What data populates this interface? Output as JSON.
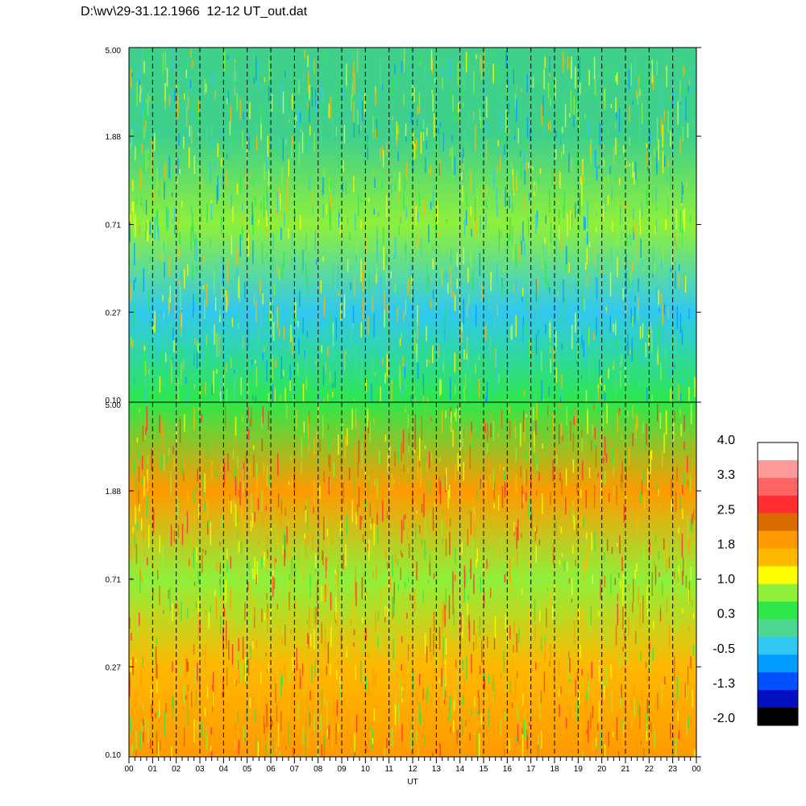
{
  "title": "D:\\wv\\29-31.12.1966  12-12 UT_out.dat",
  "chart_data": [
    {
      "type": "heatmap",
      "panel": "top",
      "y_tick_labels": [
        "5.00",
        "1.88",
        "0.71",
        "0.27",
        "0.10"
      ],
      "y_scale": "log",
      "ylim": [
        0.1,
        5.0
      ],
      "xlim": [
        0,
        24
      ],
      "dominant_colors_by_y": [
        {
          "y": 5.0,
          "color": "#3fd08c"
        },
        {
          "y": 1.88,
          "color": "#3fd08c"
        },
        {
          "y": 0.71,
          "color": "#8ef03a"
        },
        {
          "y": 0.27,
          "color": "#30c8f0"
        },
        {
          "y": 0.1,
          "color": "#2ee84a"
        }
      ]
    },
    {
      "type": "heatmap",
      "panel": "bottom",
      "y_tick_labels": [
        "5.00",
        "1.88",
        "0.71",
        "0.27",
        "0.10"
      ],
      "y_scale": "log",
      "ylim": [
        0.1,
        5.0
      ],
      "xlim": [
        0,
        24
      ],
      "dominant_colors_by_y": [
        {
          "y": 5.0,
          "color": "#2ee84a"
        },
        {
          "y": 1.88,
          "color": "#ff9a00"
        },
        {
          "y": 0.71,
          "color": "#8ef03a"
        },
        {
          "y": 0.27,
          "color": "#ffb800"
        },
        {
          "y": 0.1,
          "color": "#ff9a00"
        }
      ]
    }
  ],
  "x_axis": {
    "label": "UT",
    "tick_labels": [
      "00",
      "01",
      "02",
      "03",
      "04",
      "05",
      "06",
      "07",
      "08",
      "09",
      "10",
      "11",
      "12",
      "13",
      "14",
      "15",
      "16",
      "17",
      "18",
      "19",
      "20",
      "21",
      "22",
      "23",
      "00"
    ]
  },
  "colorbar": {
    "labels": [
      "4.0",
      "3.3",
      "2.5",
      "1.8",
      "1.0",
      "0.3",
      "-0.5",
      "-1.3",
      "-2.0"
    ],
    "colors": [
      "#ffffff",
      "#ff9a9a",
      "#ff6464",
      "#ff2f2f",
      "#d86c00",
      "#ff9a00",
      "#ffb800",
      "#ffff00",
      "#8ef03a",
      "#2ee84a",
      "#4cd890",
      "#30c8f0",
      "#009cff",
      "#0050ff",
      "#0010c0",
      "#000000"
    ]
  }
}
